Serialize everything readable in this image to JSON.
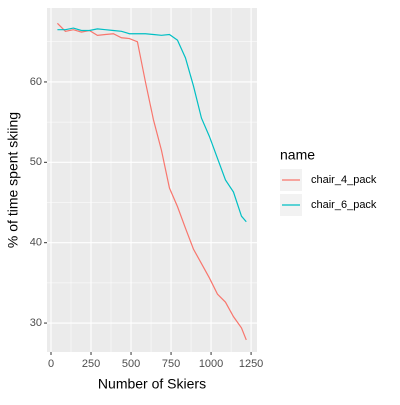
{
  "chart_data": {
    "type": "line",
    "x_label": "Number of Skiers",
    "y_label": "% of time spent skiing",
    "legend_title": "name",
    "x": [
      40,
      90,
      140,
      190,
      240,
      290,
      340,
      390,
      440,
      490,
      540,
      590,
      640,
      690,
      740,
      790,
      840,
      890,
      940,
      990,
      1040,
      1090,
      1140,
      1190,
      1220
    ],
    "series": [
      {
        "name": "chair_4_pack",
        "color": "#F8766D",
        "values": [
          67.3,
          66.3,
          66.5,
          66.2,
          66.4,
          65.8,
          65.9,
          66.0,
          65.5,
          65.4,
          65.0,
          60.0,
          55.3,
          51.5,
          46.8,
          44.5,
          41.8,
          39.2,
          37.4,
          35.6,
          33.6,
          32.6,
          30.8,
          29.4,
          27.9
        ]
      },
      {
        "name": "chair_6_pack",
        "color": "#00BFC4",
        "values": [
          66.5,
          66.5,
          66.7,
          66.4,
          66.4,
          66.6,
          66.5,
          66.4,
          66.3,
          66.0,
          66.0,
          66.0,
          65.9,
          65.8,
          65.9,
          65.2,
          63.0,
          59.5,
          55.5,
          53.2,
          50.5,
          47.8,
          46.3,
          43.3,
          42.6
        ]
      }
    ],
    "xlim": [
      -25,
      1287
    ],
    "xticks": [
      0,
      250,
      500,
      750,
      1000,
      1250
    ],
    "ylim": [
      26.4,
      69.2
    ],
    "yticks": [
      30,
      40,
      50,
      60
    ],
    "grid": true,
    "legend_position": "right"
  }
}
